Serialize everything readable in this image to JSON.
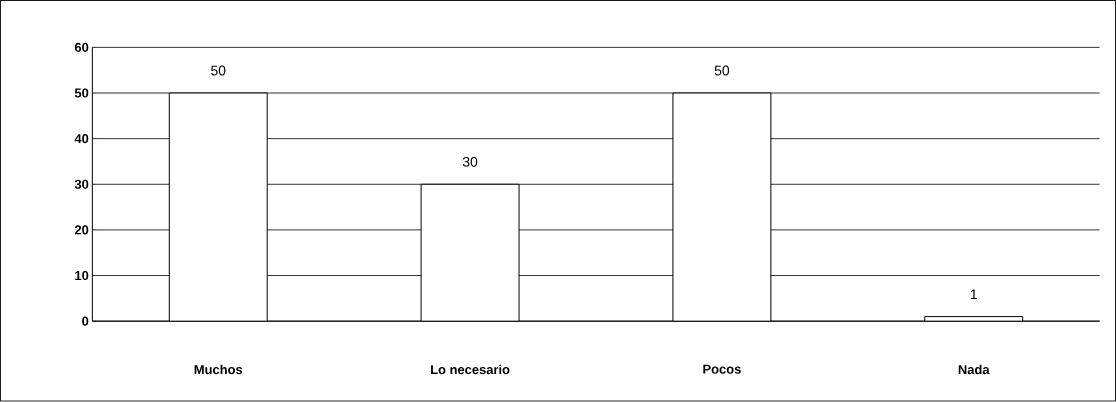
{
  "chart_data": {
    "type": "bar",
    "categories": [
      "Muchos",
      "Lo necesario",
      "Pocos",
      "Nada"
    ],
    "values": [
      50,
      30,
      50,
      1
    ],
    "color": "#ffffff",
    "ylim": [
      0,
      60
    ],
    "yticks": [
      0,
      10,
      20,
      30,
      40,
      50,
      60
    ],
    "grid": "y",
    "data_labels": true
  }
}
